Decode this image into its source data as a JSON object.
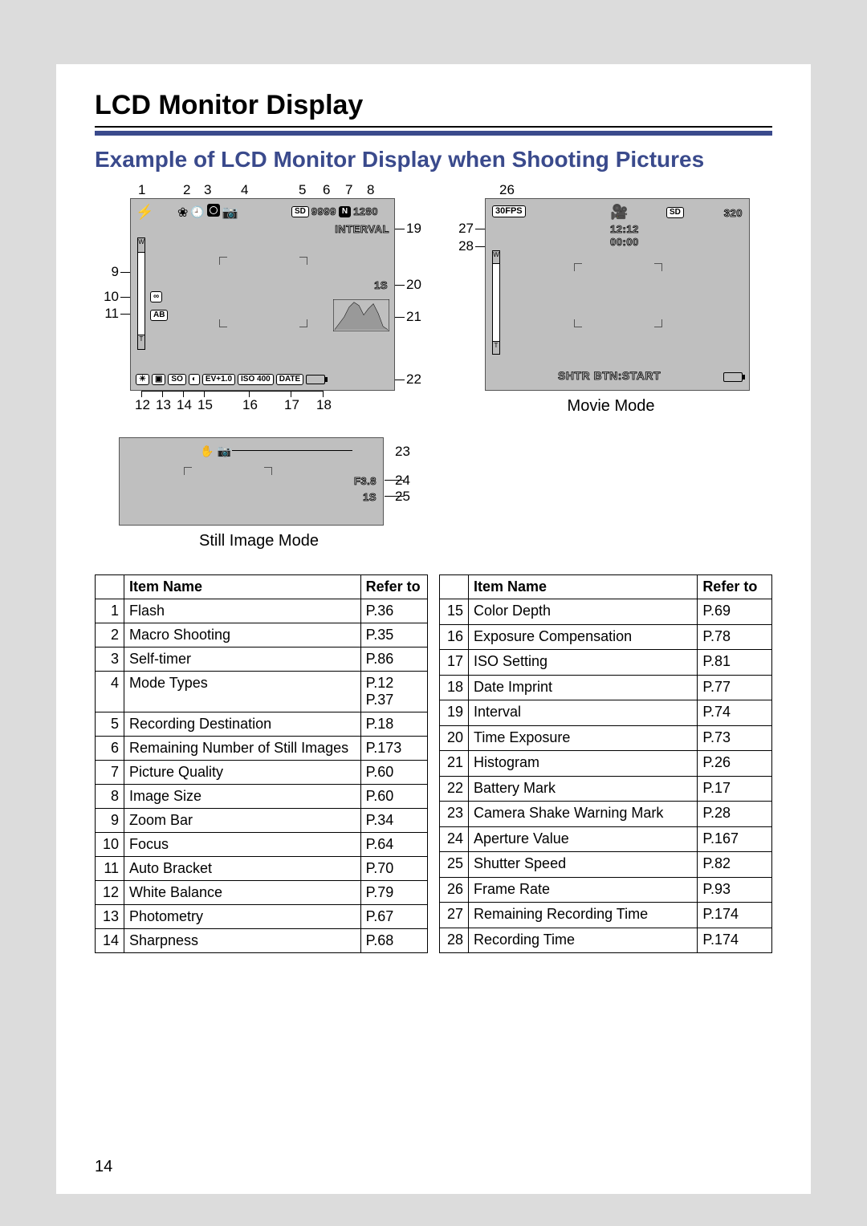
{
  "page_number": "14",
  "main_title": "LCD Monitor Display",
  "sub_title": "Example of LCD Monitor Display when Shooting Pictures",
  "captions": {
    "still": "Still Image Mode",
    "movie": "Movie Mode"
  },
  "lcd_still": {
    "top_icons": {
      "sd": "SD",
      "count": "9999",
      "quality": "N",
      "size": "1280",
      "interval": "INTERVAL",
      "shutter": "1S",
      "ev": "EV+1.0",
      "iso": "ISO 400",
      "date": "DATE",
      "ab": "AB",
      "inf": "∞",
      "so": "SO"
    }
  },
  "lcd_movie": {
    "fps": "30FPS",
    "sd": "SD",
    "size": "320",
    "time1": "12:12",
    "time2": "00:00",
    "hint": "SHTR BTN:START"
  },
  "small_lcd": {
    "fval": "F3.8",
    "shutter": "1S"
  },
  "callouts_left_top": [
    "1",
    "2",
    "3",
    "4",
    "5",
    "6",
    "7",
    "8"
  ],
  "callouts_left_side": [
    "9",
    "10",
    "11"
  ],
  "callouts_left_bottom": [
    "12",
    "13",
    "14",
    "15",
    "16",
    "17",
    "18"
  ],
  "callouts_left_right": [
    "19",
    "20",
    "21",
    "22"
  ],
  "callouts_small_right": [
    "23",
    "24",
    "25"
  ],
  "callouts_movie": [
    "26",
    "27",
    "28"
  ],
  "table_headers": {
    "num": "",
    "item": "Item Name",
    "ref": "Refer to"
  },
  "table_left": [
    {
      "n": "1",
      "name": "Flash",
      "ref": "P.36"
    },
    {
      "n": "2",
      "name": "Macro Shooting",
      "ref": "P.35"
    },
    {
      "n": "3",
      "name": "Self-timer",
      "ref": "P.86"
    },
    {
      "n": "4",
      "name": "Mode Types",
      "ref": "P.12\nP.37"
    },
    {
      "n": "5",
      "name": "Recording Destination",
      "ref": "P.18"
    },
    {
      "n": "6",
      "name": "Remaining Number of Still Images",
      "ref": "P.173"
    },
    {
      "n": "7",
      "name": "Picture Quality",
      "ref": "P.60"
    },
    {
      "n": "8",
      "name": "Image Size",
      "ref": "P.60"
    },
    {
      "n": "9",
      "name": "Zoom Bar",
      "ref": "P.34"
    },
    {
      "n": "10",
      "name": "Focus",
      "ref": "P.64"
    },
    {
      "n": "11",
      "name": "Auto Bracket",
      "ref": "P.70"
    },
    {
      "n": "12",
      "name": "White Balance",
      "ref": "P.79"
    },
    {
      "n": "13",
      "name": "Photometry",
      "ref": "P.67"
    },
    {
      "n": "14",
      "name": "Sharpness",
      "ref": "P.68"
    }
  ],
  "table_right": [
    {
      "n": "15",
      "name": "Color Depth",
      "ref": "P.69"
    },
    {
      "n": "16",
      "name": "Exposure Compensation",
      "ref": "P.78"
    },
    {
      "n": "17",
      "name": "ISO Setting",
      "ref": "P.81"
    },
    {
      "n": "18",
      "name": "Date Imprint",
      "ref": "P.77"
    },
    {
      "n": "19",
      "name": "Interval",
      "ref": "P.74"
    },
    {
      "n": "20",
      "name": "Time Exposure",
      "ref": "P.73"
    },
    {
      "n": "21",
      "name": "Histogram",
      "ref": "P.26"
    },
    {
      "n": "22",
      "name": "Battery Mark",
      "ref": "P.17"
    },
    {
      "n": "23",
      "name": "Camera Shake Warning Mark",
      "ref": "P.28"
    },
    {
      "n": "24",
      "name": "Aperture Value",
      "ref": "P.167"
    },
    {
      "n": "25",
      "name": "Shutter Speed",
      "ref": "P.82"
    },
    {
      "n": "26",
      "name": "Frame Rate",
      "ref": "P.93"
    },
    {
      "n": "27",
      "name": "Remaining Recording Time",
      "ref": "P.174"
    },
    {
      "n": "28",
      "name": "Recording Time",
      "ref": "P.174"
    }
  ],
  "colors": {
    "accent": "#3a4a8c",
    "lcd_bg": "#bfbfbf",
    "page_bg": "#dcdcdc"
  }
}
